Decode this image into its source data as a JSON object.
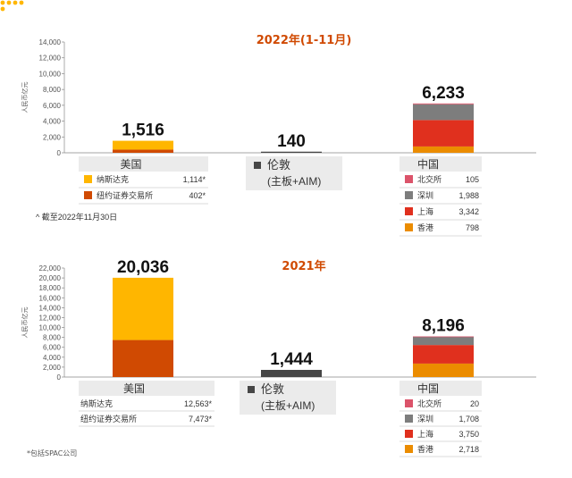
{
  "chart_data": [
    {
      "type": "bar",
      "title": "2022年(1-11月)",
      "ylabel": "人民币亿元",
      "ylim": [
        0,
        14000
      ],
      "yticks": [
        "0",
        "2,000",
        "4,000",
        "6,000",
        "8,000",
        "10,000",
        "12,000",
        "14,000"
      ],
      "groups": [
        {
          "name": "美国",
          "total": "1,516",
          "segments": [
            {
              "name": "纽约证券交易所",
              "value": 402,
              "label": "402*",
              "color": "#D04A02"
            },
            {
              "name": "纳斯达克",
              "value": 1114,
              "label": "1,114*",
              "color": "#FFB600"
            }
          ]
        },
        {
          "name": "伦敦",
          "name2": "(主板+AIM)",
          "total": "140",
          "segments": [
            {
              "name": "伦敦",
              "value": 140,
              "label": "",
              "color": "#464646"
            }
          ]
        },
        {
          "name": "中国",
          "total": "6,233",
          "segments": [
            {
              "name": "香港",
              "value": 798,
              "label": "798",
              "color": "#EB8C00"
            },
            {
              "name": "上海",
              "value": 3342,
              "label": "3,342",
              "color": "#E0301E"
            },
            {
              "name": "深圳",
              "value": 1988,
              "label": "1,988",
              "color": "#7D7D7D"
            },
            {
              "name": "北交所",
              "value": 105,
              "label": "105",
              "color": "#DB536A"
            }
          ]
        }
      ],
      "note": "截至2022年11月30日",
      "note_mark": "^"
    },
    {
      "type": "bar",
      "title": "2021年",
      "ylabel": "人民币亿元",
      "ylim": [
        0,
        22000
      ],
      "yticks": [
        "0",
        "2,000",
        "4,000",
        "6,000",
        "8,000",
        "10,000",
        "12,000",
        "14,000",
        "16,000",
        "18,000",
        "20,000",
        "22,000"
      ],
      "groups": [
        {
          "name": "美国",
          "total": "20,036",
          "segments": [
            {
              "name": "纽约证券交易所",
              "value": 7473,
              "label": "7,473*",
              "color": "#D04A02"
            },
            {
              "name": "纳斯达克",
              "value": 12563,
              "label": "12,563*",
              "color": "#FFB600"
            }
          ]
        },
        {
          "name": "伦敦",
          "name2": "(主板+AIM)",
          "total": "1,444",
          "segments": [
            {
              "name": "伦敦",
              "value": 1444,
              "label": "",
              "color": "#464646"
            }
          ]
        },
        {
          "name": "中国",
          "total": "8,196",
          "segments": [
            {
              "name": "香港",
              "value": 2718,
              "label": "2,718",
              "color": "#EB8C00"
            },
            {
              "name": "上海",
              "value": 3750,
              "label": "3,750",
              "color": "#E0301E"
            },
            {
              "name": "深圳",
              "value": 1708,
              "label": "1,708",
              "color": "#7D7D7D"
            },
            {
              "name": "北交所",
              "value": 20,
              "label": "20",
              "color": "#DB536A"
            }
          ]
        }
      ]
    }
  ],
  "footnote": "*包括SPAC公司",
  "colors": {
    "title": "#D04A02",
    "axis": "#888888",
    "legend_bg": "#EBEBEB",
    "dots": "#FFB600"
  }
}
